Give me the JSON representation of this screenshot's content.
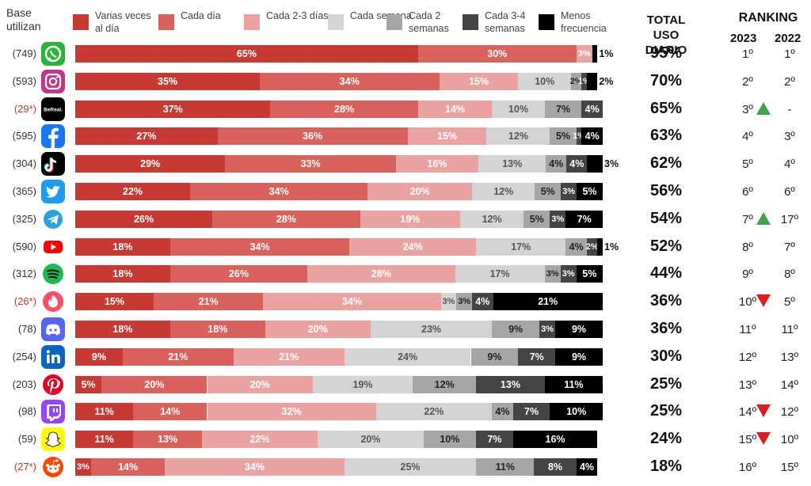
{
  "header": {
    "base_label": "Base utilizan",
    "total_label": "TOTAL USO DIARIO",
    "ranking_label": "RANKING",
    "year_2023": "2023",
    "year_2022": "2022"
  },
  "legend": [
    {
      "label": "Varias veces al día",
      "color": "#c73a33"
    },
    {
      "label": "Cada día",
      "color": "#d9625c"
    },
    {
      "label": "Cada 2-3 días",
      "color": "#e9a3a0"
    },
    {
      "label": "Cada semana",
      "color": "#d4d4d4"
    },
    {
      "label": "Cada 2 semanas",
      "color": "#a6a6a6"
    },
    {
      "label": "Cada 3-4 semanas",
      "color": "#444444"
    },
    {
      "label": "Menos frecuencia",
      "color": "#000000"
    }
  ],
  "chart_data": {
    "type": "bar",
    "stacked": true,
    "orientation": "horizontal",
    "categories": [
      "WhatsApp",
      "Instagram",
      "BeReal",
      "Facebook",
      "TikTok",
      "Twitter",
      "Telegram",
      "YouTube",
      "Spotify",
      "Tinder",
      "Discord",
      "LinkedIn",
      "Pinterest",
      "Twitch",
      "Snapchat",
      "Reddit"
    ],
    "series": [
      {
        "name": "Varias veces al día",
        "values": [
          65,
          35,
          37,
          27,
          29,
          22,
          26,
          18,
          18,
          15,
          18,
          9,
          5,
          11,
          11,
          3
        ]
      },
      {
        "name": "Cada día",
        "values": [
          30,
          34,
          28,
          36,
          33,
          34,
          28,
          34,
          26,
          21,
          18,
          21,
          20,
          14,
          13,
          14
        ]
      },
      {
        "name": "Cada 2-3 días",
        "values": [
          3,
          15,
          14,
          15,
          16,
          20,
          19,
          24,
          28,
          34,
          20,
          21,
          20,
          32,
          22,
          34
        ]
      },
      {
        "name": "Cada semana",
        "values": [
          0,
          10,
          10,
          12,
          13,
          12,
          12,
          17,
          17,
          3,
          23,
          24,
          19,
          22,
          20,
          25
        ]
      },
      {
        "name": "Cada 2 semanas",
        "values": [
          0,
          2,
          7,
          5,
          4,
          5,
          5,
          4,
          3,
          3,
          9,
          9,
          12,
          4,
          10,
          11
        ]
      },
      {
        "name": "Cada 3-4 semanas",
        "values": [
          0,
          1,
          4,
          1,
          4,
          3,
          3,
          2,
          3,
          4,
          3,
          7,
          13,
          7,
          7,
          8
        ]
      },
      {
        "name": "Menos frecuencia",
        "values": [
          1,
          2,
          0,
          4,
          3,
          5,
          7,
          1,
          5,
          21,
          9,
          9,
          11,
          10,
          16,
          4
        ]
      }
    ],
    "base": [
      "(749)",
      "(593)",
      "(29*)",
      "(595)",
      "(304)",
      "(365)",
      "(325)",
      "(590)",
      "(312)",
      "(26*)",
      "(78)",
      "(254)",
      "(203)",
      "(98)",
      "(59)",
      "(27*)"
    ],
    "total_uso_diario": [
      "95%",
      "70%",
      "65%",
      "63%",
      "62%",
      "56%",
      "54%",
      "52%",
      "44%",
      "36%",
      "36%",
      "30%",
      "25%",
      "25%",
      "24%",
      "18%"
    ],
    "ranking_2023": [
      "1º",
      "2º",
      "3º",
      "4º",
      "5º",
      "6º",
      "7º",
      "8º",
      "9º",
      "10º",
      "11º",
      "12º",
      "13º",
      "14º",
      "15º",
      "16º"
    ],
    "ranking_2022": [
      "1º",
      "2º",
      "-",
      "3º",
      "4º",
      "6º",
      "17º",
      "7º",
      "8º",
      "5º",
      "11º",
      "13º",
      "14º",
      "12º",
      "10º",
      "15º"
    ],
    "rank_change": [
      "none",
      "none",
      "up",
      "none",
      "none",
      "none",
      "up",
      "none",
      "none",
      "down",
      "none",
      "none",
      "none",
      "down",
      "down",
      "none"
    ],
    "xlim": [
      0,
      100
    ]
  },
  "icons": [
    "whatsapp-icon",
    "instagram-icon",
    "bereal-icon",
    "facebook-icon",
    "tiktok-icon",
    "twitter-icon",
    "telegram-icon",
    "youtube-icon",
    "spotify-icon",
    "tinder-icon",
    "discord-icon",
    "linkedin-icon",
    "pinterest-icon",
    "twitch-icon",
    "snapchat-icon",
    "reddit-icon"
  ],
  "colors": {
    "up": "#3fa34d",
    "down": "#e01b1b"
  }
}
